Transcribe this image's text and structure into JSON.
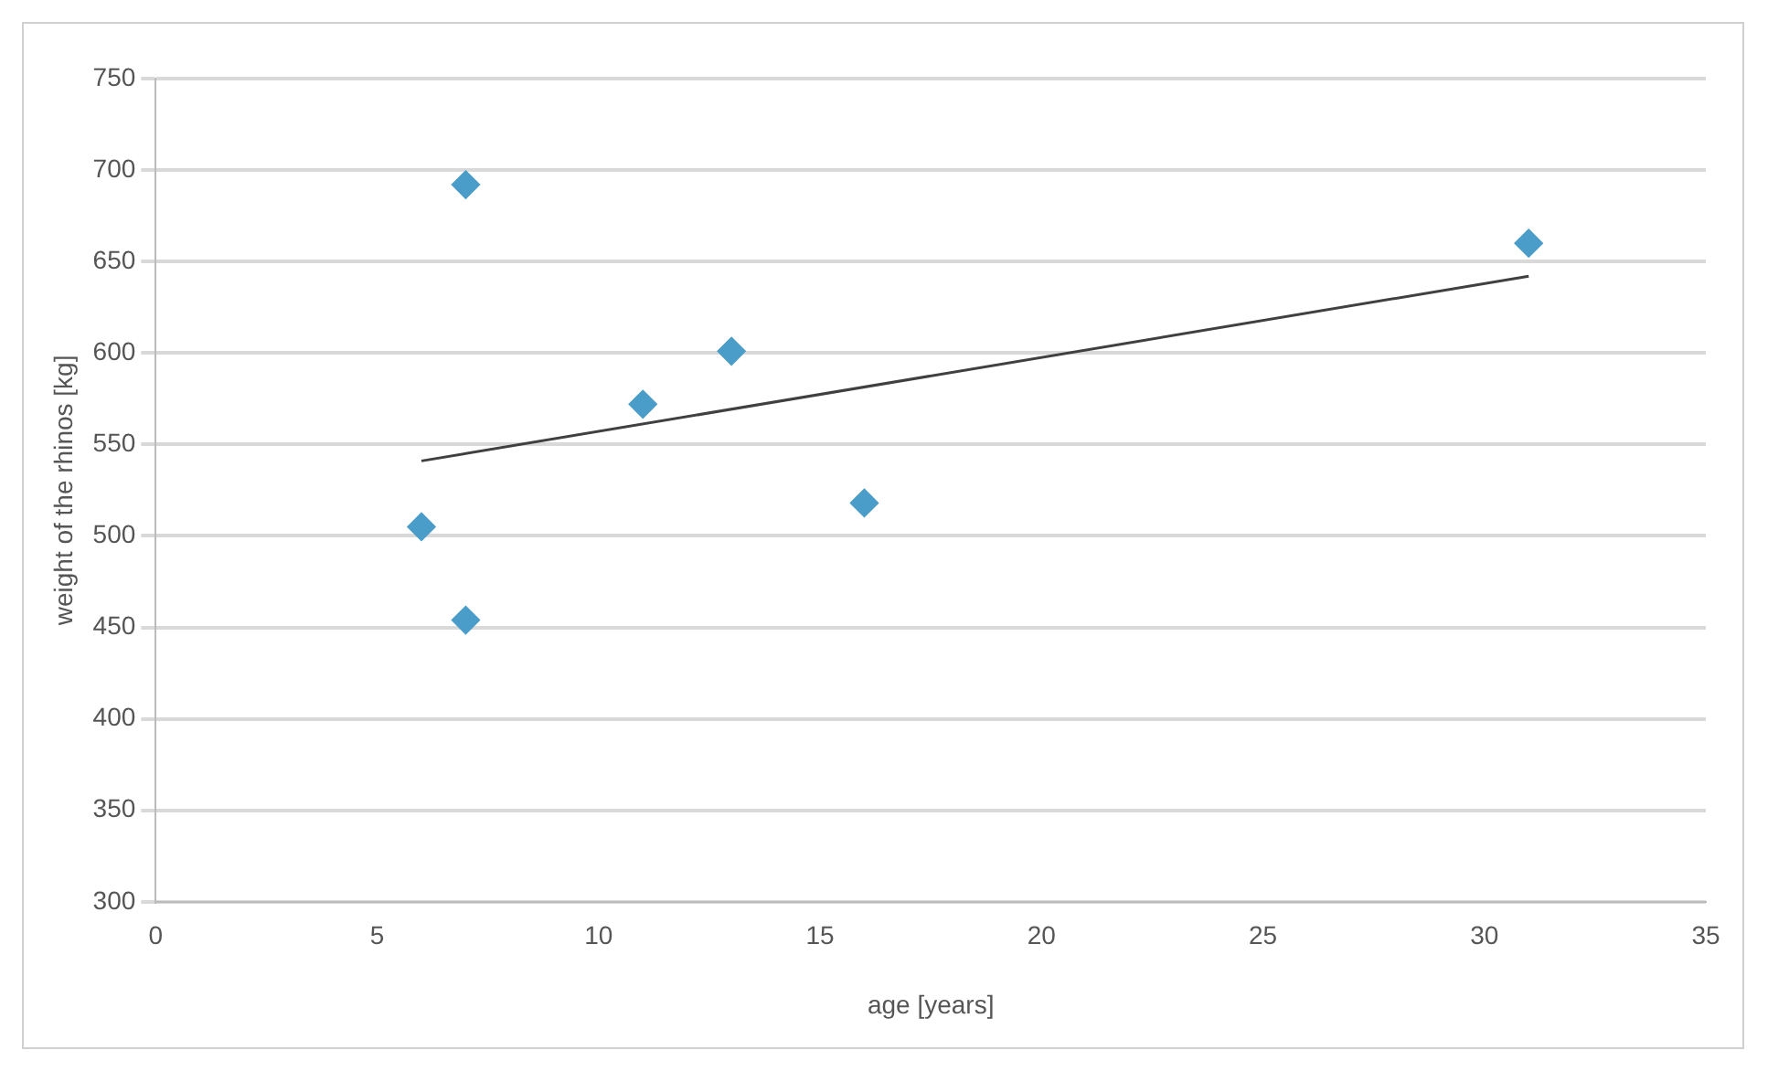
{
  "chart_data": {
    "type": "scatter",
    "xlabel": "age [years]",
    "ylabel": "weight of the rhinos [kg]",
    "xlim": [
      0,
      35
    ],
    "xticks": [
      0,
      5,
      10,
      15,
      20,
      25,
      30,
      35
    ],
    "ylim": [
      300,
      750
    ],
    "yticks": [
      300,
      350,
      400,
      450,
      500,
      550,
      600,
      650,
      700,
      750
    ],
    "grid": "y",
    "legend": false,
    "marker": "diamond",
    "series": [
      {
        "type": "scatter",
        "color": "#4a9cc9",
        "x": [
          7,
          6,
          7,
          11,
          13,
          16,
          31
        ],
        "values": [
          692,
          505,
          454,
          572,
          601,
          518,
          660
        ]
      },
      {
        "type": "line",
        "color": "#404040",
        "x": [
          6,
          31
        ],
        "values": [
          541,
          642
        ],
        "line_style": "solid",
        "marker": "none"
      }
    ]
  }
}
